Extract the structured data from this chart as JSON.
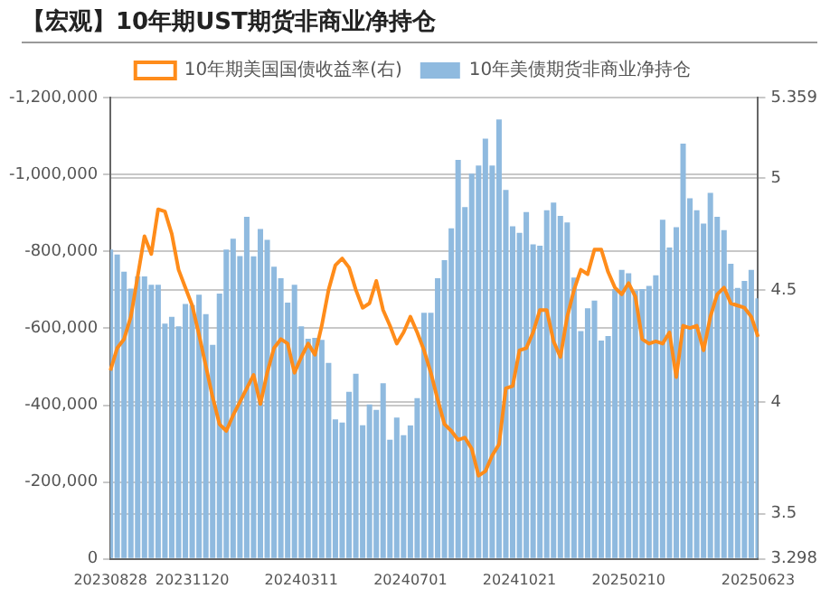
{
  "chart_data": {
    "type": "bar",
    "title": "【宏观】10年期UST期货非商业净持仓",
    "categories": [
      "20230828",
      null,
      null,
      null,
      null,
      null,
      null,
      null,
      null,
      null,
      null,
      null,
      "20231120",
      null,
      null,
      null,
      null,
      null,
      null,
      null,
      null,
      null,
      null,
      null,
      null,
      null,
      null,
      null,
      "20240311",
      null,
      null,
      null,
      null,
      null,
      null,
      null,
      null,
      null,
      null,
      null,
      null,
      null,
      null,
      null,
      "20240701",
      null,
      null,
      null,
      null,
      null,
      null,
      null,
      null,
      null,
      null,
      null,
      null,
      null,
      null,
      null,
      "20241021",
      null,
      null,
      null,
      null,
      null,
      null,
      null,
      null,
      null,
      null,
      null,
      null,
      null,
      null,
      null,
      "20250210",
      null,
      null,
      null,
      null,
      null,
      null,
      null,
      null,
      null,
      null,
      null,
      null,
      null,
      null,
      null,
      null,
      null,
      null,
      "20250623"
    ],
    "series": [
      {
        "name": "10年期美国国债收益率(右)",
        "type": "line",
        "axis": "y2",
        "color": "#ff8c1a",
        "values": [
          4.14,
          4.24,
          4.28,
          4.38,
          4.56,
          4.74,
          4.66,
          4.86,
          4.85,
          4.75,
          4.59,
          4.51,
          4.43,
          4.3,
          4.16,
          4.02,
          3.9,
          3.87,
          3.94,
          4.0,
          4.06,
          4.12,
          3.99,
          4.13,
          4.24,
          4.28,
          4.26,
          4.13,
          4.2,
          4.26,
          4.21,
          4.34,
          4.5,
          4.61,
          4.64,
          4.6,
          4.5,
          4.42,
          4.44,
          4.54,
          4.41,
          4.34,
          4.26,
          4.31,
          4.38,
          4.31,
          4.23,
          4.13,
          4.01,
          3.9,
          3.87,
          3.83,
          3.84,
          3.79,
          3.67,
          3.69,
          3.76,
          3.81,
          4.06,
          4.07,
          4.23,
          4.24,
          4.31,
          4.41,
          4.41,
          4.27,
          4.2,
          4.38,
          4.5,
          4.59,
          4.57,
          4.68,
          4.68,
          4.58,
          4.51,
          4.48,
          4.53,
          4.47,
          4.28,
          4.26,
          4.27,
          4.26,
          4.31,
          4.11,
          4.34,
          4.33,
          4.34,
          4.23,
          4.38,
          4.48,
          4.51,
          4.44,
          4.43,
          4.42,
          4.38,
          4.29
        ]
      },
      {
        "name": "10年美债期货非商业净持仓",
        "color": "#8fbadf",
        "values": [
          -805000,
          -792000,
          -747000,
          -703000,
          -735000,
          -735000,
          -713000,
          -713000,
          -612000,
          -630000,
          -605000,
          -663000,
          -660000,
          -687000,
          -637000,
          -557000,
          -690000,
          -805000,
          -833000,
          -788000,
          -890000,
          -787000,
          -858000,
          -830000,
          -760000,
          -730000,
          -667000,
          -713000,
          -605000,
          -573000,
          -575000,
          -570000,
          -510000,
          -363000,
          -355000,
          -435000,
          -482000,
          -348000,
          -402000,
          -388000,
          -457000,
          -310000,
          -368000,
          -322000,
          -347000,
          -418000,
          -640000,
          -640000,
          -730000,
          -777000,
          -860000,
          -1038000,
          -915000,
          -1002000,
          -1023000,
          -1093000,
          -1023000,
          -1143000,
          -960000,
          -865000,
          -848000,
          -902000,
          -818000,
          -815000,
          -907000,
          -927000,
          -892000,
          -875000,
          -732000,
          -593000,
          -652000,
          -672000,
          -568000,
          -580000,
          -702000,
          -752000,
          -743000,
          -698000,
          -702000,
          -710000,
          -738000,
          -882000,
          -810000,
          -863000,
          -1080000,
          -938000,
          -907000,
          -872000,
          -952000,
          -890000,
          -855000,
          -768000,
          -705000,
          -723000,
          -752000,
          -678000
        ]
      }
    ],
    "ylim": [
      0,
      -1200000
    ],
    "yticks": [
      0,
      {
        "value": -200000,
        "label": "-200,000"
      },
      {
        "value": -400000,
        "label": "-400,000"
      },
      {
        "value": -600000,
        "label": "-600,000"
      },
      {
        "value": -800000,
        "label": "-800,000"
      },
      {
        "value": -1000000,
        "label": "-1,000,000"
      },
      {
        "value": -1200000,
        "label": "-1,200,000"
      }
    ],
    "y2lim": [
      3.298,
      5.359
    ],
    "y2ticks": [
      3.298,
      3.5,
      4,
      4.5,
      5,
      5.359
    ],
    "grid": "y",
    "legend": "top",
    "marker": "none",
    "line_style": "solid"
  }
}
